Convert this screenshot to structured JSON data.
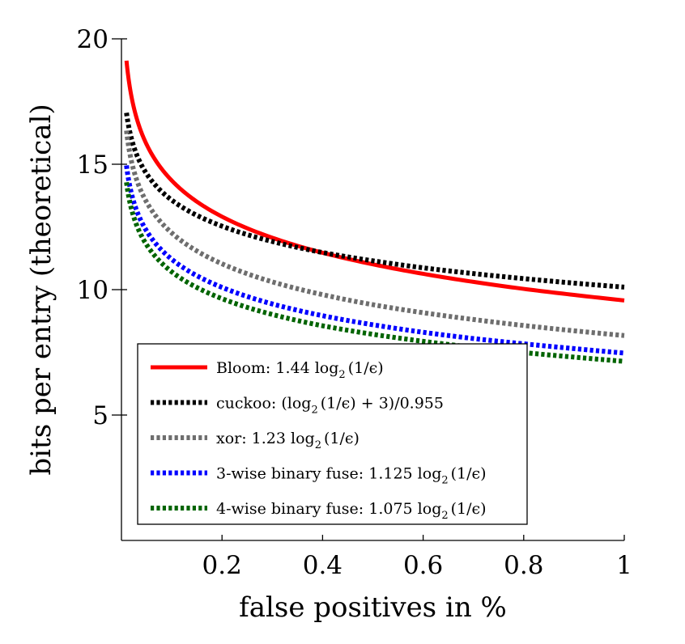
{
  "chart_data": {
    "type": "line",
    "xlabel": "false positives in %",
    "ylabel": "bits per entry (theoretical)",
    "xlim": [
      0.01,
      1
    ],
    "ylim": [
      0,
      20
    ],
    "xticks": [
      0.2,
      0.4,
      0.6,
      0.8,
      1
    ],
    "xtick_labels": [
      "0.2",
      "0.4",
      "0.6",
      "0.8",
      "1"
    ],
    "yticks": [
      5,
      10,
      15,
      20
    ],
    "ytick_labels": [
      "5",
      "10",
      "15",
      "20"
    ],
    "legend_position": "bottom-left",
    "series": [
      {
        "name": "Bloom",
        "label_prefix": "Bloom: 1.44 log",
        "label_sub": "2",
        "label_suffix": "(1/ϵ)",
        "color": "#ff0000",
        "style": "solid",
        "x": [
          0.01,
          0.02,
          0.05,
          0.1,
          0.2,
          0.3,
          0.4,
          0.5,
          0.6,
          0.7,
          0.8,
          0.9,
          1.0
        ],
        "y": [
          19.13,
          17.69,
          15.79,
          14.35,
          12.91,
          12.07,
          11.47,
          11.01,
          10.63,
          10.31,
          10.03,
          9.79,
          9.57
        ]
      },
      {
        "name": "cuckoo",
        "label_prefix": "cuckoo: (log",
        "label_sub": "2",
        "label_suffix": "(1/ϵ) + 3)/0.955",
        "color": "#000000",
        "style": "dotted",
        "x": [
          0.01,
          0.02,
          0.05,
          0.1,
          0.2,
          0.3,
          0.4,
          0.5,
          0.6,
          0.7,
          0.8,
          0.9,
          1.0
        ],
        "y": [
          17.05,
          16.01,
          14.62,
          13.57,
          12.53,
          11.92,
          11.48,
          11.15,
          10.87,
          10.64,
          10.44,
          10.26,
          10.1
        ]
      },
      {
        "name": "xor",
        "label_prefix": "xor: 1.23 log",
        "label_sub": "2",
        "label_suffix": "(1/ϵ)",
        "color": "#6e6e6e",
        "style": "dotted",
        "x": [
          0.01,
          0.02,
          0.05,
          0.1,
          0.2,
          0.3,
          0.4,
          0.5,
          0.6,
          0.7,
          0.8,
          0.9,
          1.0
        ],
        "y": [
          16.34,
          15.11,
          13.49,
          12.26,
          11.03,
          10.31,
          9.8,
          9.4,
          9.08,
          8.81,
          8.57,
          8.36,
          8.17
        ]
      },
      {
        "name": "3-wise binary fuse",
        "label_prefix": "3-wise binary fuse: 1.125 log",
        "label_sub": "2",
        "label_suffix": "(1/ϵ)",
        "color": "#0000ff",
        "style": "dotted",
        "x": [
          0.01,
          0.02,
          0.05,
          0.1,
          0.2,
          0.3,
          0.4,
          0.5,
          0.6,
          0.7,
          0.8,
          0.9,
          1.0
        ],
        "y": [
          14.95,
          13.82,
          12.34,
          11.21,
          10.09,
          9.43,
          8.96,
          8.6,
          8.3,
          8.05,
          7.84,
          7.65,
          7.47
        ]
      },
      {
        "name": "4-wise binary fuse",
        "label_prefix": "4-wise binary fuse: 1.075 log",
        "label_sub": "2",
        "label_suffix": "(1/ϵ)",
        "color": "#006400",
        "style": "dotted",
        "x": [
          0.01,
          0.02,
          0.05,
          0.1,
          0.2,
          0.3,
          0.4,
          0.5,
          0.6,
          0.7,
          0.8,
          0.9,
          1.0
        ],
        "y": [
          14.28,
          13.21,
          11.79,
          10.71,
          9.64,
          9.01,
          8.56,
          8.22,
          7.94,
          7.7,
          7.49,
          7.31,
          7.14
        ]
      }
    ]
  }
}
